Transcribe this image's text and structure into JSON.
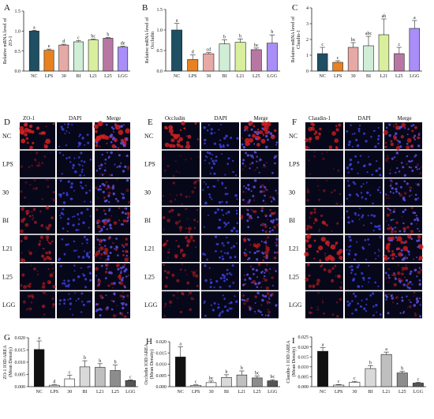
{
  "colors": {
    "top_bars": [
      "#1f4f63",
      "#e8821f",
      "#e7a9a6",
      "#d0eed6",
      "#d9ef9d",
      "#b877a3",
      "#a98ef7"
    ],
    "bottom_bars": [
      "#111111",
      "#f2f2f2",
      "#ffffff",
      "#d9d9d9",
      "#bfbfbf",
      "#8c8c8c",
      "#555555"
    ],
    "micro_bg": "#07071a"
  },
  "chart_data": [
    {
      "panel": "A",
      "type": "bar",
      "ylabel": "Relative mRNA level of ZO-1",
      "ylim": [
        0,
        1.5
      ],
      "yticks": [
        "0.0",
        "0.5",
        "1.0",
        "1.5"
      ],
      "categories": [
        "NC",
        "LPS",
        "30",
        "BI",
        "L21",
        "L25",
        "LGG"
      ],
      "values": [
        1.0,
        0.52,
        0.65,
        0.73,
        0.78,
        0.82,
        0.6
      ],
      "errors": [
        0.02,
        0.03,
        0.02,
        0.03,
        0.02,
        0.02,
        0.02
      ],
      "letters": [
        "a",
        "e",
        "d",
        "c",
        "bc",
        "b",
        "de"
      ]
    },
    {
      "panel": "B",
      "type": "bar",
      "ylabel": "Relative mRNA level of Occludin",
      "ylim": [
        0,
        1.5
      ],
      "yticks": [
        "0.0",
        "0.5",
        "1.0",
        "1.5"
      ],
      "categories": [
        "NC",
        "LPS",
        "30",
        "BI",
        "L21",
        "L25",
        "LGG"
      ],
      "values": [
        1.0,
        0.28,
        0.42,
        0.66,
        0.7,
        0.52,
        0.68
      ],
      "errors": [
        0.16,
        0.11,
        0.03,
        0.1,
        0.08,
        0.04,
        0.2
      ],
      "letters": [
        "a",
        "d",
        "cd",
        "b",
        "b",
        "bc",
        "b"
      ]
    },
    {
      "panel": "C",
      "type": "bar",
      "ylabel": "Relative mRNA level of Claudin-1",
      "ylim": [
        0,
        4
      ],
      "yticks": [
        "0",
        "1",
        "2",
        "3",
        "4"
      ],
      "categories": [
        "NC",
        "LPS",
        "30",
        "BI",
        "L21",
        "L25",
        "LGG"
      ],
      "values": [
        1.1,
        0.55,
        1.5,
        1.6,
        2.3,
        1.1,
        2.7
      ],
      "errors": [
        0.4,
        0.1,
        0.3,
        0.6,
        1.0,
        0.4,
        0.5
      ],
      "letters": [
        "c",
        "c",
        "bc",
        "abc",
        "ab",
        "c",
        "a"
      ]
    },
    {
      "panel": "G",
      "type": "bar",
      "ylabel": "ZO-1 IOD/AREA (Mean Density)",
      "ylim": [
        0,
        0.02
      ],
      "yticks": [
        "0.000",
        "0.005",
        "0.010",
        "0.015",
        "0.020"
      ],
      "categories": [
        "NC",
        "LPS",
        "30",
        "BI",
        "L21",
        "L25",
        "LGG"
      ],
      "values": [
        0.0152,
        0.0006,
        0.0032,
        0.0081,
        0.0079,
        0.0066,
        0.0025
      ],
      "errors": [
        0.0035,
        0.0002,
        0.0015,
        0.0025,
        0.0015,
        0.0022,
        0.0003
      ],
      "letters": [
        "a",
        "d",
        "c",
        "b",
        "b",
        "b",
        "c"
      ]
    },
    {
      "panel": "H",
      "type": "bar",
      "ylabel": "Occludin IOD/AREA (Mean Density)",
      "ylim": [
        0,
        0.02
      ],
      "yticks": [
        "0.000",
        "0.005",
        "0.010",
        "0.015",
        "0.020"
      ],
      "categories": [
        "NC",
        "LPS",
        "30",
        "BI",
        "L21",
        "L25",
        "LGG"
      ],
      "values": [
        0.0132,
        0.0006,
        0.0018,
        0.0041,
        0.0052,
        0.0039,
        0.0026
      ],
      "errors": [
        0.0045,
        0.0002,
        0.0007,
        0.0012,
        0.0018,
        0.0008,
        0.0005
      ],
      "letters": [
        "a",
        "c",
        "bc",
        "b",
        "b",
        "bc",
        "bc"
      ]
    },
    {
      "panel": "I",
      "type": "bar",
      "ylabel": "Claudin-1 IOD/AREA (Mean Density)",
      "ylim": [
        0,
        0.025
      ],
      "yticks": [
        "0.000",
        "0.005",
        "0.010",
        "0.015",
        "0.020",
        "0.025"
      ],
      "categories": [
        "NC",
        "LPS",
        "30",
        "BI",
        "L21",
        "L25",
        "LGG"
      ],
      "values": [
        0.0178,
        0.0008,
        0.0022,
        0.0091,
        0.0162,
        0.0069,
        0.0018
      ],
      "errors": [
        0.0018,
        0.0003,
        0.0005,
        0.0015,
        0.0012,
        0.0008,
        0.0004
      ],
      "letters": [
        "a",
        "c",
        "c",
        "b",
        "a",
        "b",
        "c"
      ]
    }
  ],
  "micrographs": [
    {
      "panel": "D",
      "columns": [
        "ZO-1",
        "DAPI",
        "Merge"
      ],
      "rows": [
        "NC",
        "LPS",
        "30",
        "BI",
        "L21",
        "L25",
        "LGG"
      ],
      "stain_color": "#d42020",
      "stain_intensity": [
        0.9,
        0.15,
        0.25,
        0.55,
        0.6,
        0.5,
        0.35
      ]
    },
    {
      "panel": "E",
      "columns": [
        "Occludin",
        "DAPI",
        "Merge"
      ],
      "rows": [
        "NC",
        "LPS",
        "30",
        "BI",
        "L21",
        "L25",
        "LGG"
      ],
      "stain_color": "#d42020",
      "stain_intensity": [
        0.85,
        0.12,
        0.25,
        0.45,
        0.6,
        0.45,
        0.35
      ]
    },
    {
      "panel": "F",
      "columns": [
        "Claudin-1",
        "DAPI",
        "Merge"
      ],
      "rows": [
        "NC",
        "LPS",
        "30",
        "BI",
        "L21",
        "L25",
        "LGG"
      ],
      "stain_color": "#d42020",
      "stain_intensity": [
        0.75,
        0.12,
        0.25,
        0.5,
        0.85,
        0.5,
        0.25
      ]
    }
  ]
}
